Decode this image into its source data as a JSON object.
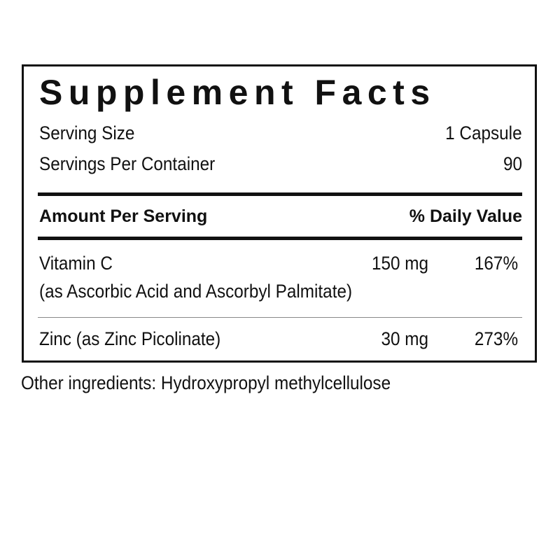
{
  "title": "Supplement Facts",
  "serving_size_label": "Serving Size",
  "serving_size_value": "1 Capsule",
  "servings_label": "Servings Per Container",
  "servings_value": "90",
  "header": {
    "amount": "Amount Per Serving",
    "dv": "% Daily Value"
  },
  "rows": [
    {
      "name": "Vitamin C",
      "sub": "(as Ascorbic Acid and Ascorbyl Palmitate)",
      "amount": "150 mg",
      "dv": "167%"
    },
    {
      "name": "Zinc (as Zinc Picolinate)",
      "amount": "30 mg",
      "dv": "273%"
    }
  ],
  "other": "Other ingredients: Hydroxypropyl methylcellulose"
}
